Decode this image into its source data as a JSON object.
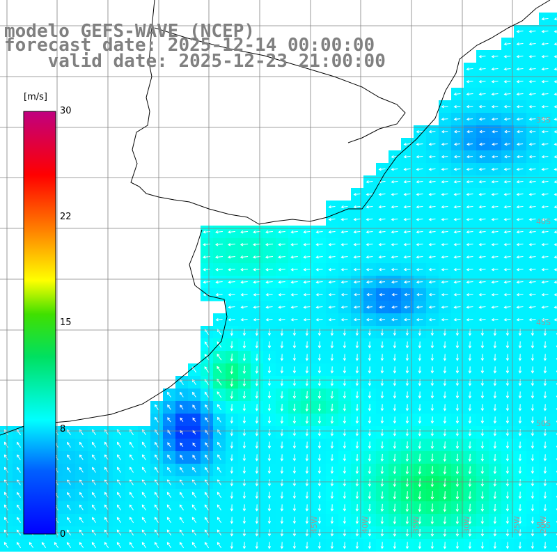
{
  "title": {
    "line1": "modelo GEFS-WAVE (NCEP)",
    "line2": "forecast date: 2025-12-14 00:00:00",
    "line3": "    valid date: 2025-12-23 21:00:00"
  },
  "colorbar": {
    "unit": "[m/s]",
    "ticks": [
      "30",
      "22",
      "15",
      "8",
      "0"
    ],
    "tick_values": [
      30,
      22,
      15,
      8,
      0
    ],
    "range": [
      0,
      30
    ],
    "colors": [
      "#0000ff",
      "#0080ff",
      "#00ffff",
      "#00ff00",
      "#ffff00",
      "#ff8000",
      "#ff0000",
      "#c00080"
    ]
  },
  "grid_labels": {
    "right": [
      "35S",
      "40S",
      "45S",
      "50S",
      "55S"
    ],
    "bottom": [
      "45W",
      "40W",
      "35W",
      "30W",
      "25W",
      "20W"
    ]
  },
  "map": {
    "field": "wind speed",
    "land_color": "#ffffff",
    "grid_color": "#808080",
    "coast_color": "#000000",
    "arrow_color": "#ffffff"
  }
}
